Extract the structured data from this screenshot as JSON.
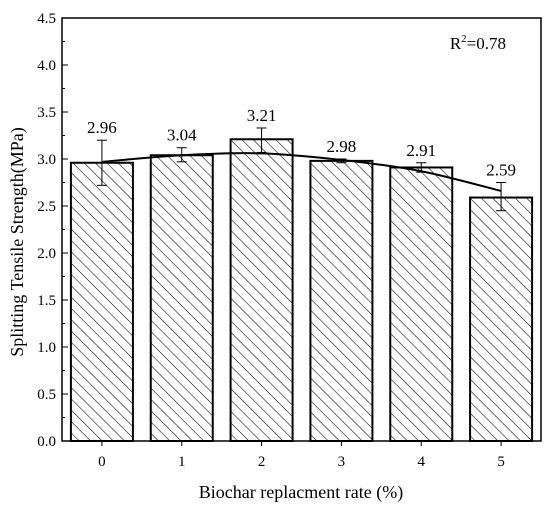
{
  "chart_data": {
    "type": "bar",
    "categories": [
      "0",
      "1",
      "2",
      "3",
      "4",
      "5"
    ],
    "values": [
      2.96,
      3.04,
      3.21,
      2.98,
      2.91,
      2.59
    ],
    "value_labels": [
      "2.96",
      "3.04",
      "3.21",
      "2.98",
      "2.91",
      "2.59"
    ],
    "error_bars": [
      [
        2.72,
        3.2
      ],
      [
        2.97,
        3.12
      ],
      [
        3.07,
        3.33
      ],
      [
        2.96,
        3.0
      ],
      [
        2.86,
        2.96
      ],
      [
        2.45,
        2.75
      ]
    ],
    "trendline": {
      "type": "polynomial",
      "x": [
        0,
        1,
        2,
        3,
        4,
        5
      ],
      "y": [
        2.97,
        3.04,
        3.06,
        2.99,
        2.87,
        2.66
      ]
    },
    "annotation": {
      "base": "R",
      "sup": "2",
      "rest": "=0.78"
    },
    "xlabel": "Biochar replacment rate (%)",
    "ylabel": "Splitting Tensile Strength(MPa)",
    "ylim": [
      0,
      4.5
    ],
    "yticks": [
      "0.0",
      "0.5",
      "1.0",
      "1.5",
      "2.0",
      "2.5",
      "3.0",
      "3.5",
      "4.0",
      "4.5"
    ],
    "grid": false,
    "legend": "none",
    "bar_hatch": "diagonal",
    "colors": {
      "bar_fill": "#ffffff",
      "stroke": "#000000"
    }
  }
}
